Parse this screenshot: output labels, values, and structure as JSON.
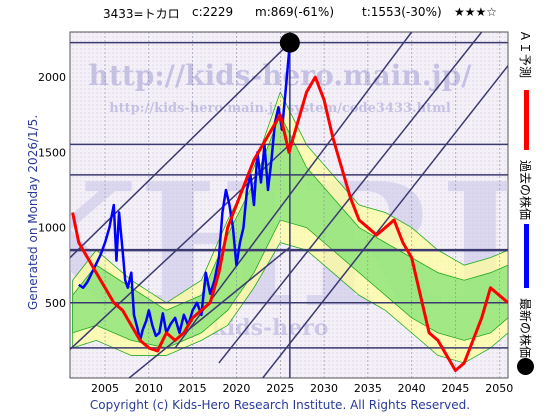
{
  "header": {
    "code_name": "3433=トカロ",
    "current": "c:2229",
    "min_info": "m:869(-61%)",
    "target": "t:1553(-30%)",
    "stars": "★★★☆"
  },
  "generated": "Generated on Monday 2026/1/5.",
  "watermark": {
    "url_large": "http://kids-hero.main.jp/",
    "url_small": "http://kids-hero.main.jp/system/code3433.html",
    "logo": "KHRI",
    "bottom": "kids-hero"
  },
  "footer": "Copyright (c) Kids-Hero Research Institute. All Rights Reserved.",
  "legend": [
    {
      "label": "ＡＩ予測",
      "color": "#ff0000"
    },
    {
      "label": "過去の株価",
      "color": "#0000ff"
    },
    {
      "label": "最新の株価",
      "color": "#000000"
    }
  ],
  "colors": {
    "forecast": "#ff0000",
    "history": "#0000ff",
    "band_outer": "#ffff99",
    "band_inner": "#66dd66",
    "band_lines": "#22aa22",
    "grid": "#8080a0",
    "hlines": "#3a3a70",
    "diag": "#3a3a70",
    "latest_dot": "#000000"
  },
  "chart_data": {
    "type": "line",
    "xlim": [
      2001,
      2051
    ],
    "ylim": [
      0,
      2300
    ],
    "x_ticks": [
      2005,
      2010,
      2015,
      2020,
      2025,
      2030,
      2035,
      2040,
      2045,
      2050
    ],
    "y_ticks": [
      500,
      1000,
      1500,
      2000
    ],
    "hlines": [
      200,
      500,
      850,
      1350,
      1553,
      2229
    ],
    "vline": 2026.1,
    "latest_point": {
      "x": 2026.1,
      "y": 2229
    },
    "diagonals": [
      {
        "x": [
          2001,
          2026.1
        ],
        "y": [
          800,
          2229
        ]
      },
      {
        "x": [
          2001,
          2026.1
        ],
        "y": [
          190,
          1553
        ]
      },
      {
        "x": [
          2001,
          2026.1
        ],
        "y": [
          -320,
          869
        ]
      },
      {
        "x": [
          2013,
          2040
        ],
        "y": [
          200,
          2300
        ]
      },
      {
        "x": [
          2018,
          2048
        ],
        "y": [
          100,
          2300
        ]
      },
      {
        "x": [
          2023,
          2052
        ],
        "y": [
          0,
          2150
        ]
      }
    ],
    "series": [
      {
        "name": "過去の株価",
        "x": [
          2002.0,
          2002.5,
          2003.0,
          2003.5,
          2004.0,
          2004.5,
          2005.0,
          2005.5,
          2006.0,
          2006.3,
          2006.6,
          2007.0,
          2007.3,
          2007.6,
          2008.0,
          2008.3,
          2008.7,
          2009.0,
          2009.3,
          2009.7,
          2010.0,
          2010.4,
          2010.8,
          2011.2,
          2011.6,
          2012.0,
          2012.5,
          2013.0,
          2013.5,
          2014.0,
          2014.5,
          2015.0,
          2015.5,
          2016.0,
          2016.5,
          2017.0,
          2017.5,
          2018.0,
          2018.4,
          2018.8,
          2019.2,
          2019.6,
          2020.0,
          2020.4,
          2020.8,
          2021.2,
          2021.6,
          2022.0,
          2022.4,
          2022.8,
          2023.2,
          2023.6,
          2024.0,
          2024.4,
          2024.8,
          2025.2,
          2025.6,
          2026.1
        ],
        "y": [
          620,
          600,
          640,
          700,
          760,
          820,
          900,
          1000,
          1150,
          780,
          1100,
          850,
          650,
          600,
          700,
          420,
          330,
          250,
          320,
          380,
          450,
          350,
          280,
          300,
          430,
          300,
          360,
          400,
          300,
          420,
          350,
          450,
          500,
          420,
          700,
          560,
          650,
          800,
          1100,
          1250,
          1150,
          1000,
          750,
          900,
          1000,
          1250,
          1350,
          1150,
          1500,
          1300,
          1550,
          1250,
          1450,
          1700,
          1800,
          1650,
          1900,
          2229
        ]
      },
      {
        "name": "ＡＩ予測",
        "x": [
          2001.3,
          2002.0,
          2003.0,
          2004.0,
          2005.0,
          2006.0,
          2007.0,
          2008.0,
          2009.0,
          2010.0,
          2011.0,
          2012.0,
          2013.0,
          2014.0,
          2015.0,
          2016.0,
          2017.0,
          2018.0,
          2019.0,
          2020.0,
          2021.0,
          2022.0,
          2023.0,
          2024.0,
          2025.0,
          2026.0,
          2027.0,
          2028.0,
          2029.0,
          2030.0,
          2031.0,
          2032.0,
          2033.0,
          2034.0,
          2035.0,
          2036.0,
          2037.0,
          2038.0,
          2039.0,
          2040.0,
          2041.0,
          2042.0,
          2043.0,
          2044.0,
          2045.0,
          2046.0,
          2047.0,
          2048.0,
          2049.0,
          2050.0,
          2051.0
        ],
        "y": [
          1100,
          900,
          800,
          700,
          600,
          500,
          450,
          350,
          250,
          200,
          180,
          300,
          250,
          300,
          400,
          450,
          500,
          700,
          1000,
          1150,
          1300,
          1450,
          1550,
          1650,
          1750,
          1500,
          1700,
          1900,
          2000,
          1850,
          1600,
          1400,
          1200,
          1050,
          1000,
          950,
          1000,
          1050,
          900,
          800,
          550,
          300,
          250,
          150,
          50,
          100,
          250,
          400,
          600,
          550,
          500
        ]
      }
    ],
    "bands": [
      {
        "x": [
          2001.3,
          2004,
          2008,
          2012,
          2016,
          2019,
          2022,
          2025,
          2028,
          2031,
          2034,
          2037,
          2040,
          2043,
          2046,
          2049,
          2051
        ],
        "upper": [
          650,
          850,
          650,
          500,
          650,
          1050,
          1400,
          1900,
          1550,
          1350,
          1150,
          1100,
          1000,
          850,
          750,
          800,
          850
        ],
        "lower": [
          200,
          250,
          150,
          150,
          250,
          350,
          600,
          900,
          850,
          700,
          550,
          450,
          300,
          150,
          100,
          200,
          300
        ]
      },
      {
        "x": [
          2001.3,
          2004,
          2008,
          2012,
          2016,
          2019,
          2022,
          2025,
          2028,
          2031,
          2034,
          2037,
          2040,
          2043,
          2046,
          2049,
          2051
        ],
        "upper": [
          550,
          750,
          600,
          450,
          550,
          950,
          1300,
          1750,
          1400,
          1200,
          1000,
          900,
          800,
          700,
          650,
          700,
          750
        ],
        "lower": [
          300,
          350,
          250,
          200,
          300,
          450,
          700,
          1050,
          1000,
          850,
          700,
          550,
          400,
          300,
          250,
          300,
          400
        ]
      }
    ]
  }
}
